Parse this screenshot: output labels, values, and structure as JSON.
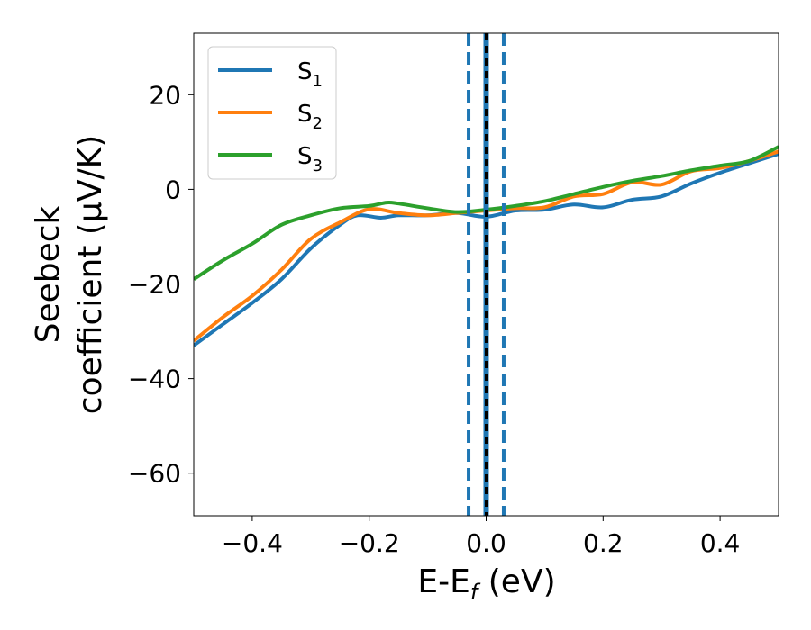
{
  "chart_data": {
    "type": "line",
    "xlabel": "E-E",
    "xlabel_sub": "f",
    "xlabel_unit": " (eV)",
    "ylabel_line1": "Seebeck",
    "ylabel_line2": "coefficient  (μV/K)",
    "xlim": [
      -0.5,
      0.5
    ],
    "ylim": [
      -69,
      33
    ],
    "xticks": [
      -0.4,
      -0.2,
      0.0,
      0.2,
      0.4
    ],
    "xtick_labels": [
      "−0.4",
      "−0.2",
      "0.0",
      "0.2",
      "0.4"
    ],
    "yticks": [
      20,
      0,
      -20,
      -40,
      -60
    ],
    "ytick_labels": [
      "20",
      "0",
      "−20",
      "−40",
      "−60"
    ],
    "grid": false,
    "legend_position": "top-left",
    "series": [
      {
        "name": "S",
        "sub": "1",
        "color": "#1f77b4",
        "x": [
          -0.5,
          -0.45,
          -0.4,
          -0.35,
          -0.3,
          -0.25,
          -0.22,
          -0.18,
          -0.15,
          -0.1,
          -0.05,
          0.0,
          0.05,
          0.1,
          0.15,
          0.2,
          0.25,
          0.3,
          0.35,
          0.4,
          0.45,
          0.5
        ],
        "y": [
          -33,
          -28.5,
          -24,
          -19,
          -12.5,
          -7.5,
          -5.5,
          -6,
          -5.5,
          -5.5,
          -5,
          -5.8,
          -4.5,
          -4.3,
          -3.2,
          -3.8,
          -2.2,
          -1.5,
          1.2,
          3.5,
          5.5,
          7.5
        ]
      },
      {
        "name": "S",
        "sub": "2",
        "color": "#ff7f0e",
        "x": [
          -0.5,
          -0.45,
          -0.4,
          -0.35,
          -0.3,
          -0.25,
          -0.2,
          -0.15,
          -0.1,
          -0.05,
          0.0,
          0.05,
          0.1,
          0.15,
          0.2,
          0.25,
          0.3,
          0.35,
          0.4,
          0.45,
          0.5
        ],
        "y": [
          -32,
          -27,
          -22.5,
          -17,
          -10.5,
          -7,
          -4.2,
          -5,
          -5.5,
          -5,
          -4.5,
          -4,
          -3.8,
          -1.5,
          -1,
          1.5,
          1,
          3.8,
          4.5,
          6,
          8
        ]
      },
      {
        "name": "S",
        "sub": "3",
        "color": "#2ca02c",
        "x": [
          -0.5,
          -0.45,
          -0.4,
          -0.35,
          -0.3,
          -0.25,
          -0.2,
          -0.17,
          -0.15,
          -0.1,
          -0.05,
          0.0,
          0.05,
          0.1,
          0.15,
          0.2,
          0.25,
          0.3,
          0.35,
          0.4,
          0.45,
          0.5
        ],
        "y": [
          -19,
          -15,
          -11.5,
          -7.5,
          -5.5,
          -4,
          -3.5,
          -2.8,
          -3,
          -4,
          -4.8,
          -4.3,
          -3.5,
          -2.5,
          -1,
          0.5,
          1.8,
          2.8,
          4,
          5,
          6,
          9
        ]
      }
    ],
    "vlines": [
      {
        "x": -0.03,
        "style": "dashed",
        "color": "#1f77b4"
      },
      {
        "x": 0.0,
        "style": "solid-with-black-dash",
        "color": "#1f77b4"
      },
      {
        "x": 0.03,
        "style": "dashed",
        "color": "#1f77b4"
      }
    ]
  }
}
